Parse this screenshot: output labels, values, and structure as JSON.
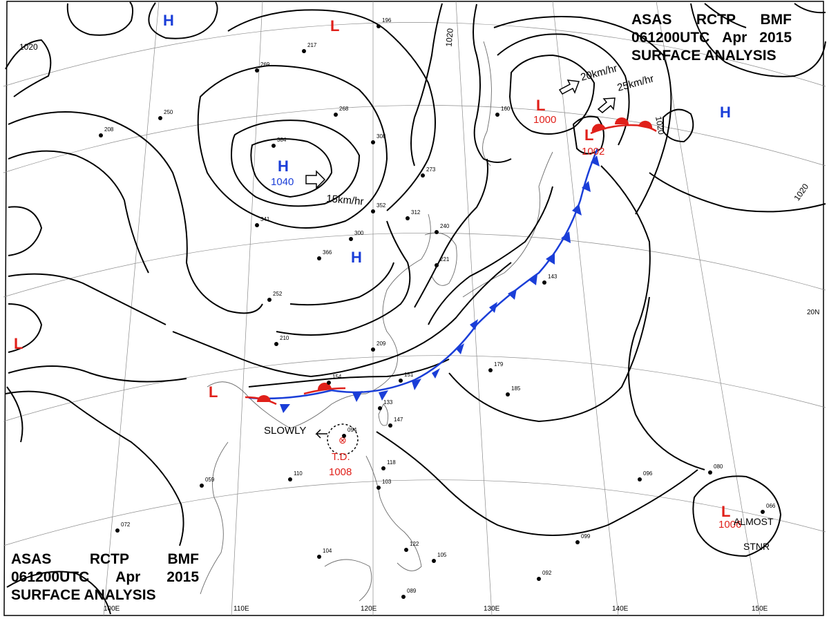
{
  "title": {
    "line1": [
      "ASAS",
      "RCTP",
      "BMF"
    ],
    "line2": [
      "061200UTC",
      "Apr",
      "2015"
    ],
    "line3": "SURFACE ANALYSIS"
  },
  "pressure_systems": [
    {
      "type": "H",
      "pressure": ""
    },
    {
      "type": "H",
      "pressure": "1040"
    },
    {
      "type": "H",
      "pressure": ""
    },
    {
      "type": "H",
      "pressure": ""
    },
    {
      "type": "L",
      "pressure": ""
    },
    {
      "type": "L",
      "pressure": "1000"
    },
    {
      "type": "L",
      "pressure": "1002"
    },
    {
      "type": "L",
      "pressure": ""
    },
    {
      "type": "L",
      "pressure": ""
    },
    {
      "type": "L",
      "pressure": "1006"
    }
  ],
  "tropical_depression": {
    "label": "T.D.",
    "pressure": "1008",
    "motion": "SLOWLY"
  },
  "motions": [
    "15km/hr",
    "20km/hr",
    "25km/hr"
  ],
  "notes": {
    "almost": "ALMOST",
    "stnr": "STNR"
  },
  "isobar_labels": [
    "1020",
    "1020",
    "1020",
    "1020"
  ],
  "grid_labels": [
    "100E",
    "110E",
    "120E",
    "130E",
    "140E",
    "150E",
    "20N"
  ],
  "station_samples": [
    "196",
    "217",
    "269",
    "268",
    "308",
    "273",
    "312",
    "352",
    "300",
    "366",
    "384",
    "341",
    "250",
    "208",
    "252",
    "210",
    "209",
    "154",
    "151",
    "133",
    "147",
    "094",
    "110",
    "059",
    "118",
    "103",
    "179",
    "185",
    "143",
    "240",
    "221",
    "160",
    "096",
    "080",
    "066",
    "099",
    "092",
    "089",
    "104",
    "072",
    "105",
    "122"
  ],
  "colors": {
    "high": "#1a3ed8",
    "low": "#e0201a",
    "cold_front": "#1a3ed8",
    "warm_front": "#e0201a",
    "isobar": "#000000",
    "grid": "#8a8a8a",
    "coast": "#6a6a6a"
  }
}
